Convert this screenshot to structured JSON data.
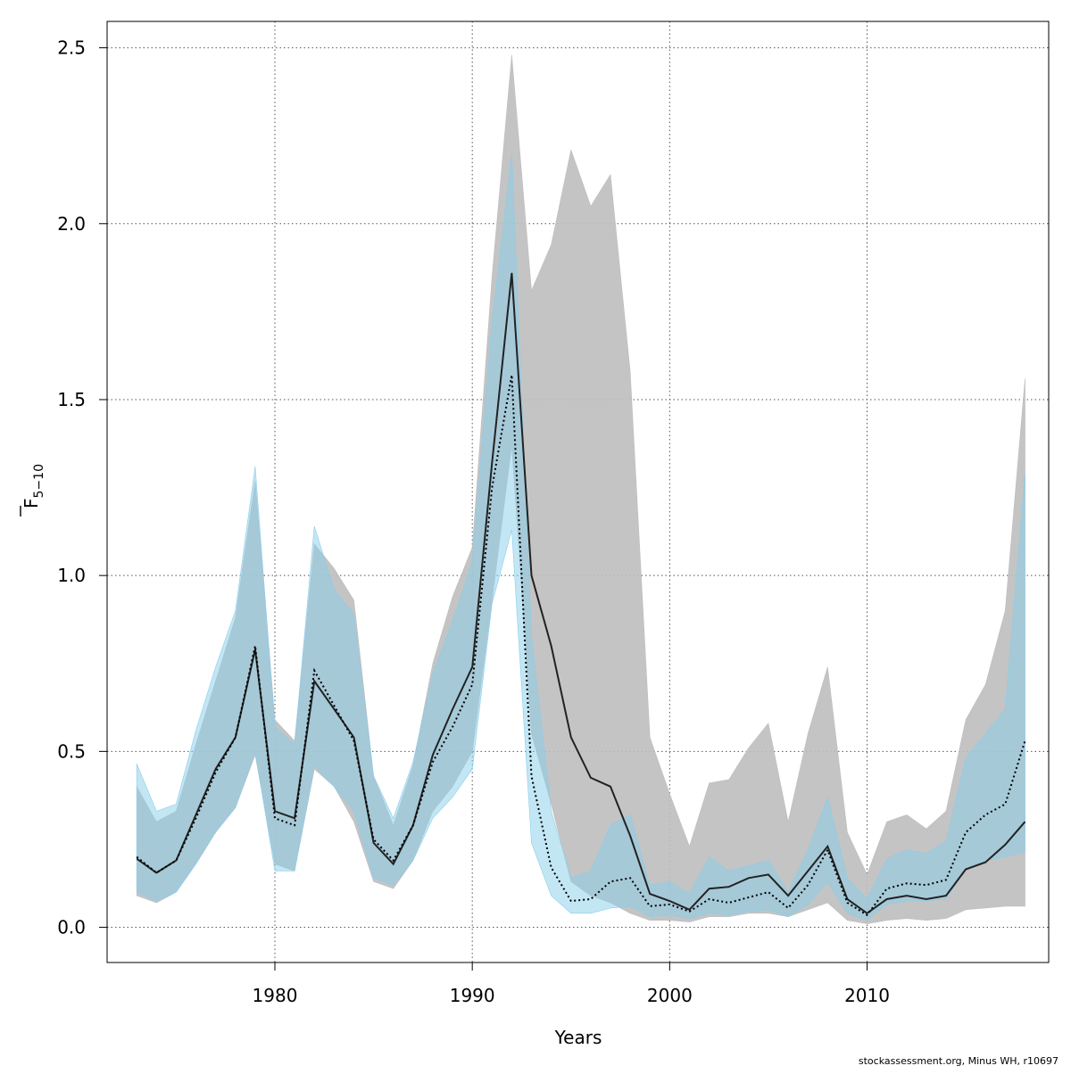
{
  "chart_data": {
    "type": "line",
    "xlabel": "Years",
    "ylabel": "F",
    "ylabel_subscript": "5−10",
    "xlim": [
      1971.5,
      2019.2
    ],
    "ylim": [
      -0.1,
      2.575
    ],
    "x_ticks": [
      1980,
      1990,
      2000,
      2010
    ],
    "x_tick_labels": [
      "1980",
      "1990",
      "2000",
      "2010"
    ],
    "y_ticks": [
      0.0,
      0.5,
      1.0,
      1.5,
      2.0,
      2.5
    ],
    "y_tick_labels": [
      "0.0",
      "0.5",
      "1.0",
      "1.5",
      "2.0",
      "2.5"
    ],
    "grid": true,
    "x": [
      1973,
      1974,
      1975,
      1976,
      1977,
      1978,
      1979,
      1980,
      1981,
      1982,
      1983,
      1984,
      1985,
      1986,
      1987,
      1988,
      1989,
      1990,
      1991,
      1992,
      1993,
      1994,
      1995,
      1996,
      1997,
      1998,
      1999,
      2000,
      2001,
      2002,
      2003,
      2004,
      2005,
      2006,
      2007,
      2008,
      2009,
      2010,
      2011,
      2012,
      2013,
      2014,
      2015,
      2016,
      2017,
      2018
    ],
    "series": [
      {
        "style": "solid",
        "color": "#222222",
        "band_color": "#bebebe",
        "values": [
          0.195,
          0.155,
          0.19,
          0.32,
          0.45,
          0.54,
          0.79,
          0.33,
          0.31,
          0.7,
          0.62,
          0.54,
          0.24,
          0.18,
          0.29,
          0.49,
          0.62,
          0.74,
          1.32,
          1.86,
          1.0,
          0.8,
          0.54,
          0.425,
          0.4,
          0.26,
          0.095,
          0.075,
          0.05,
          0.11,
          0.115,
          0.14,
          0.15,
          0.09,
          0.16,
          0.23,
          0.08,
          0.04,
          0.08,
          0.09,
          0.08,
          0.09,
          0.165,
          0.185,
          0.235,
          0.3
        ],
        "lower": [
          0.09,
          0.07,
          0.1,
          0.18,
          0.27,
          0.34,
          0.49,
          0.18,
          0.16,
          0.45,
          0.4,
          0.3,
          0.13,
          0.11,
          0.19,
          0.33,
          0.4,
          0.5,
          0.93,
          1.37,
          0.55,
          0.35,
          0.13,
          0.09,
          0.07,
          0.04,
          0.02,
          0.02,
          0.015,
          0.03,
          0.03,
          0.04,
          0.04,
          0.03,
          0.05,
          0.07,
          0.02,
          0.01,
          0.02,
          0.025,
          0.02,
          0.025,
          0.05,
          0.055,
          0.06,
          0.06
        ],
        "upper": [
          0.4,
          0.3,
          0.33,
          0.52,
          0.7,
          0.88,
          1.27,
          0.59,
          0.53,
          1.09,
          1.02,
          0.93,
          0.43,
          0.29,
          0.46,
          0.75,
          0.94,
          1.08,
          1.85,
          2.48,
          1.81,
          1.94,
          2.21,
          2.05,
          2.14,
          1.58,
          0.54,
          0.38,
          0.23,
          0.41,
          0.42,
          0.51,
          0.58,
          0.3,
          0.55,
          0.74,
          0.27,
          0.15,
          0.3,
          0.32,
          0.28,
          0.33,
          0.59,
          0.69,
          0.9,
          1.56
        ]
      },
      {
        "style": "dotted",
        "color": "#000000",
        "band_color": "#87ceeb",
        "values": [
          0.2,
          0.155,
          0.19,
          0.31,
          0.44,
          0.54,
          0.8,
          0.31,
          0.29,
          0.73,
          0.63,
          0.53,
          0.25,
          0.19,
          0.29,
          0.47,
          0.57,
          0.69,
          1.25,
          1.57,
          0.43,
          0.17,
          0.075,
          0.08,
          0.13,
          0.14,
          0.06,
          0.065,
          0.045,
          0.08,
          0.07,
          0.085,
          0.1,
          0.055,
          0.12,
          0.22,
          0.07,
          0.035,
          0.11,
          0.125,
          0.12,
          0.135,
          0.27,
          0.32,
          0.35,
          0.53
        ],
        "lower": [
          0.1,
          0.075,
          0.1,
          0.18,
          0.27,
          0.34,
          0.5,
          0.16,
          0.16,
          0.46,
          0.4,
          0.33,
          0.14,
          0.12,
          0.19,
          0.31,
          0.37,
          0.45,
          0.92,
          1.13,
          0.24,
          0.09,
          0.04,
          0.04,
          0.055,
          0.06,
          0.03,
          0.035,
          0.025,
          0.04,
          0.035,
          0.045,
          0.05,
          0.03,
          0.065,
          0.13,
          0.04,
          0.02,
          0.065,
          0.075,
          0.075,
          0.08,
          0.165,
          0.19,
          0.2,
          0.215
        ],
        "upper": [
          0.465,
          0.33,
          0.35,
          0.56,
          0.74,
          0.9,
          1.31,
          0.57,
          0.52,
          1.14,
          0.96,
          0.89,
          0.43,
          0.31,
          0.47,
          0.72,
          0.87,
          1.04,
          1.72,
          2.2,
          0.83,
          0.33,
          0.14,
          0.16,
          0.29,
          0.32,
          0.12,
          0.13,
          0.095,
          0.2,
          0.16,
          0.175,
          0.19,
          0.1,
          0.22,
          0.37,
          0.14,
          0.08,
          0.195,
          0.22,
          0.21,
          0.245,
          0.48,
          0.55,
          0.62,
          1.29
        ]
      }
    ]
  },
  "footer": {
    "credit": "stockassessment.org, Minus WH, r10697"
  }
}
